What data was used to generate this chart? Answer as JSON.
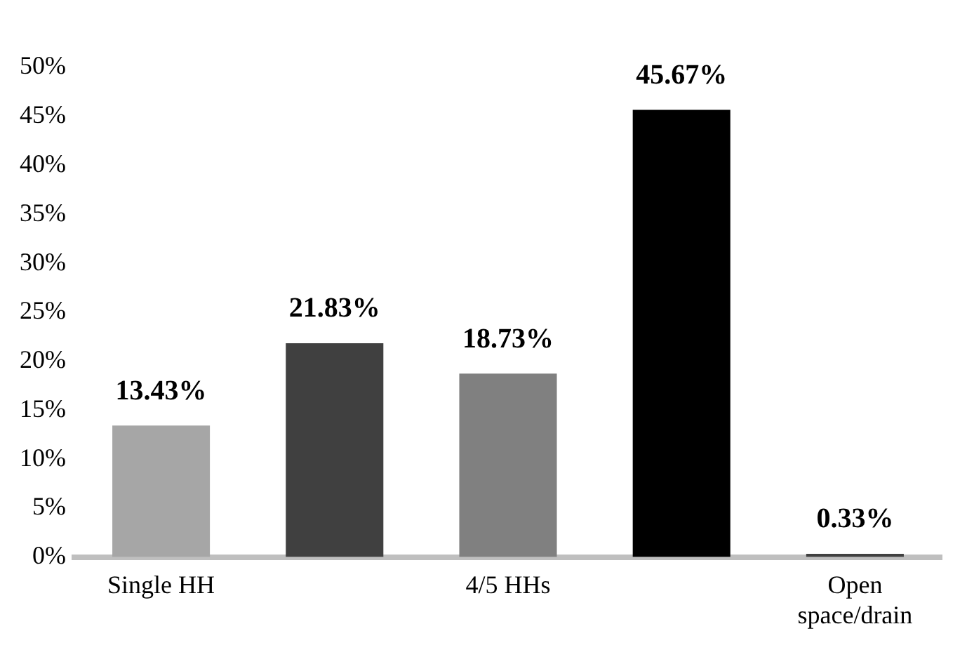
{
  "chart_data": {
    "type": "bar",
    "categories": [
      "Single HH",
      null,
      "4/5 HHs",
      null,
      "Open space/drain"
    ],
    "values": [
      13.43,
      21.83,
      18.73,
      45.67,
      0.33
    ],
    "colors": [
      "#a6a6a6",
      "#404040",
      "#808080",
      "#000000",
      "#404040"
    ],
    "value_labels": [
      "13.43%",
      "21.83%",
      "18.73%",
      "45.67%",
      "0.33%"
    ],
    "ylim": [
      0,
      50
    ],
    "yticks": [
      {
        "value": 0,
        "label": "0%"
      },
      {
        "value": 5,
        "label": "5%"
      },
      {
        "value": 10,
        "label": "10%"
      },
      {
        "value": 15,
        "label": "15%"
      },
      {
        "value": 20,
        "label": "20%"
      },
      {
        "value": 25,
        "label": "25%"
      },
      {
        "value": 30,
        "label": "30%"
      },
      {
        "value": 35,
        "label": "35%"
      },
      {
        "value": 40,
        "label": "40%"
      },
      {
        "value": 45,
        "label": "45%"
      },
      {
        "value": 50,
        "label": "50%"
      }
    ],
    "grid": false,
    "legend": false
  }
}
